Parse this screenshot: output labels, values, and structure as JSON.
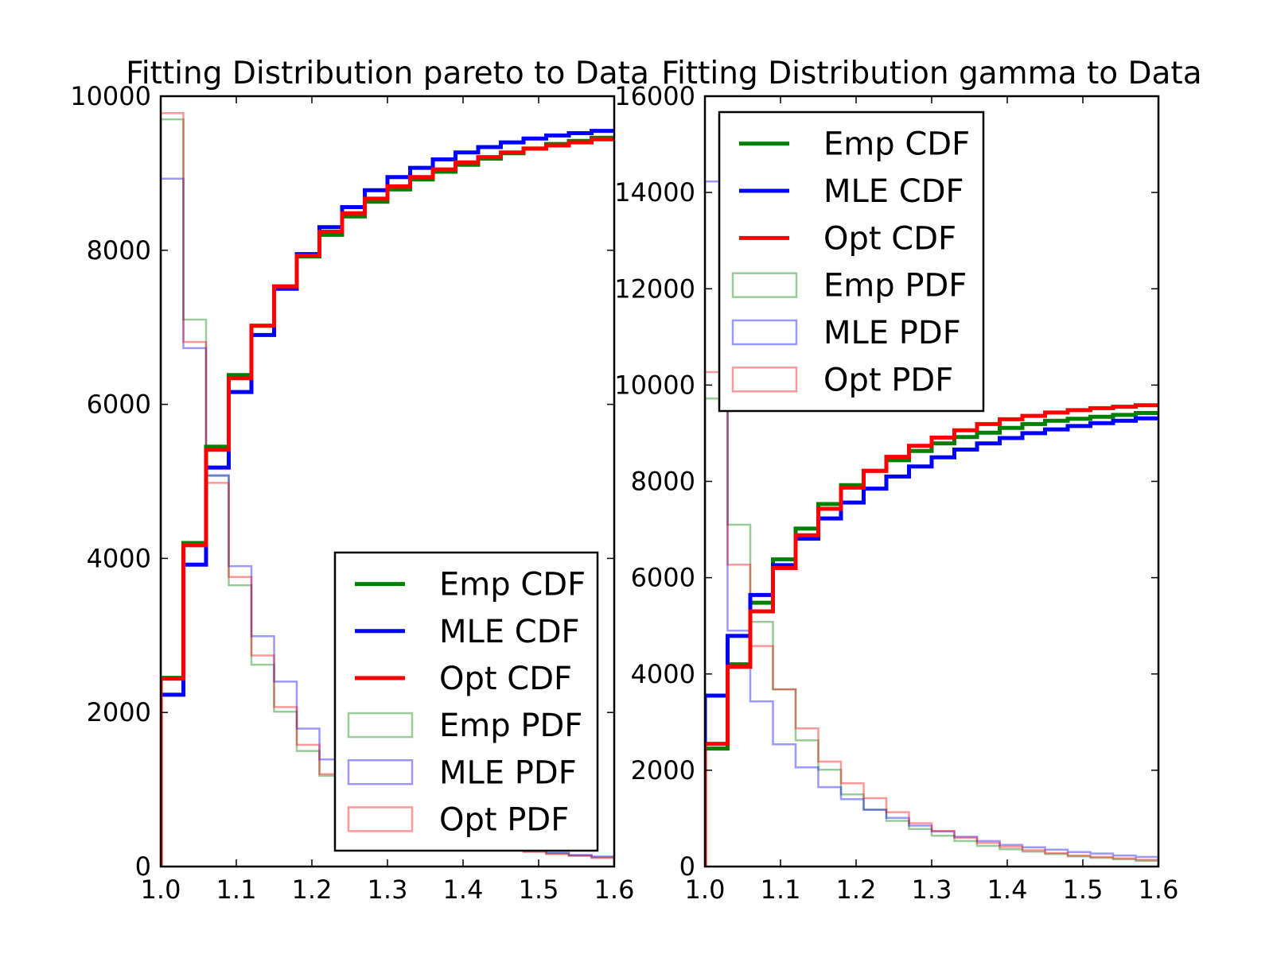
{
  "chart_data": [
    {
      "type": "line",
      "title": "Fitting Distribution pareto to Data",
      "xlim": [
        1.0,
        1.6
      ],
      "ylim": [
        0,
        10000
      ],
      "xticks": [
        "1.0",
        "1.1",
        "1.2",
        "1.3",
        "1.4",
        "1.5",
        "1.6"
      ],
      "yticks": [
        "0",
        "2000",
        "4000",
        "6000",
        "8000",
        "10000"
      ],
      "grid": false,
      "legend_position": "lower-right",
      "bin_edges": [
        1.0,
        1.03,
        1.06,
        1.09,
        1.12,
        1.15,
        1.18,
        1.21,
        1.24,
        1.27,
        1.3,
        1.33,
        1.36,
        1.39,
        1.42,
        1.45,
        1.48,
        1.51,
        1.54,
        1.57,
        1.6
      ],
      "series": [
        {
          "name": "Emp CDF",
          "kind": "cdf",
          "color": "#008000",
          "values": [
            2450,
            4200,
            5450,
            6380,
            7020,
            7530,
            7920,
            8200,
            8440,
            8630,
            8790,
            8920,
            9020,
            9110,
            9190,
            9260,
            9320,
            9380,
            9420,
            9460
          ]
        },
        {
          "name": "MLE CDF",
          "kind": "cdf",
          "color": "#0000ff",
          "values": [
            2230,
            3920,
            5180,
            6160,
            6900,
            7500,
            7950,
            8300,
            8560,
            8780,
            8950,
            9070,
            9180,
            9270,
            9340,
            9400,
            9450,
            9490,
            9520,
            9550
          ]
        },
        {
          "name": "Opt CDF",
          "kind": "cdf",
          "color": "#ff0000",
          "values": [
            2440,
            4170,
            5410,
            6340,
            7020,
            7530,
            7930,
            8240,
            8480,
            8670,
            8830,
            8950,
            9050,
            9140,
            9210,
            9270,
            9320,
            9360,
            9400,
            9440
          ]
        },
        {
          "name": "Emp PDF",
          "kind": "pdf",
          "color": "#008000",
          "values": [
            9700,
            7100,
            5070,
            3650,
            2620,
            2010,
            1500,
            1180,
            900,
            730,
            590,
            480,
            400,
            330,
            280,
            240,
            200,
            170,
            140,
            120
          ]
        },
        {
          "name": "MLE PDF",
          "kind": "pdf",
          "color": "#0000ff",
          "values": [
            8930,
            6730,
            5080,
            3900,
            2990,
            2400,
            1790,
            1390,
            1080,
            850,
            670,
            540,
            440,
            360,
            300,
            250,
            210,
            180,
            150,
            130
          ]
        },
        {
          "name": "Opt PDF",
          "kind": "pdf",
          "color": "#ff0000",
          "values": [
            9780,
            6810,
            4980,
            3760,
            2740,
            2070,
            1580,
            1200,
            920,
            730,
            590,
            480,
            390,
            330,
            280,
            230,
            190,
            160,
            140,
            110
          ]
        }
      ]
    },
    {
      "type": "line",
      "title": "Fitting Distribution gamma to Data",
      "xlim": [
        1.0,
        1.6
      ],
      "ylim": [
        0,
        16000
      ],
      "xticks": [
        "1.0",
        "1.1",
        "1.2",
        "1.3",
        "1.4",
        "1.5",
        "1.6"
      ],
      "yticks": [
        "0",
        "2000",
        "4000",
        "6000",
        "8000",
        "10000",
        "12000",
        "14000",
        "16000"
      ],
      "grid": false,
      "legend_position": "upper-left",
      "bin_edges": [
        1.0,
        1.03,
        1.06,
        1.09,
        1.12,
        1.15,
        1.18,
        1.21,
        1.24,
        1.27,
        1.3,
        1.33,
        1.36,
        1.39,
        1.42,
        1.45,
        1.48,
        1.51,
        1.54,
        1.57,
        1.6
      ],
      "series": [
        {
          "name": "Emp CDF",
          "kind": "cdf",
          "color": "#008000",
          "values": [
            2450,
            4200,
            5480,
            6380,
            7020,
            7530,
            7920,
            8220,
            8440,
            8630,
            8790,
            8920,
            9010,
            9110,
            9190,
            9260,
            9300,
            9340,
            9380,
            9420
          ]
        },
        {
          "name": "MLE CDF",
          "kind": "cdf",
          "color": "#0000ff",
          "values": [
            3550,
            4790,
            5640,
            6260,
            6810,
            7230,
            7560,
            7850,
            8100,
            8310,
            8500,
            8660,
            8790,
            8900,
            9000,
            9080,
            9150,
            9210,
            9260,
            9310
          ]
        },
        {
          "name": "Opt CDF",
          "kind": "cdf",
          "color": "#ff0000",
          "values": [
            2550,
            4150,
            5300,
            6200,
            6880,
            7430,
            7870,
            8220,
            8510,
            8740,
            8910,
            9060,
            9190,
            9290,
            9360,
            9430,
            9480,
            9520,
            9550,
            9580
          ]
        },
        {
          "name": "Emp PDF",
          "kind": "pdf",
          "color": "#008000",
          "values": [
            9720,
            7100,
            5080,
            3680,
            2620,
            2010,
            1500,
            1180,
            950,
            780,
            640,
            530,
            430,
            360,
            310,
            260,
            210,
            180,
            150,
            120
          ]
        },
        {
          "name": "MLE PDF",
          "kind": "pdf",
          "color": "#0000ff",
          "values": [
            14230,
            4900,
            3430,
            2540,
            2060,
            1650,
            1400,
            1180,
            1010,
            850,
            730,
            620,
            530,
            450,
            400,
            350,
            300,
            270,
            230,
            200
          ]
        },
        {
          "name": "Opt PDF",
          "kind": "pdf",
          "color": "#ff0000",
          "values": [
            10270,
            6270,
            4580,
            3680,
            2870,
            2180,
            1730,
            1420,
            1130,
            900,
            740,
            600,
            490,
            410,
            340,
            280,
            230,
            200,
            170,
            140
          ]
        }
      ]
    }
  ]
}
